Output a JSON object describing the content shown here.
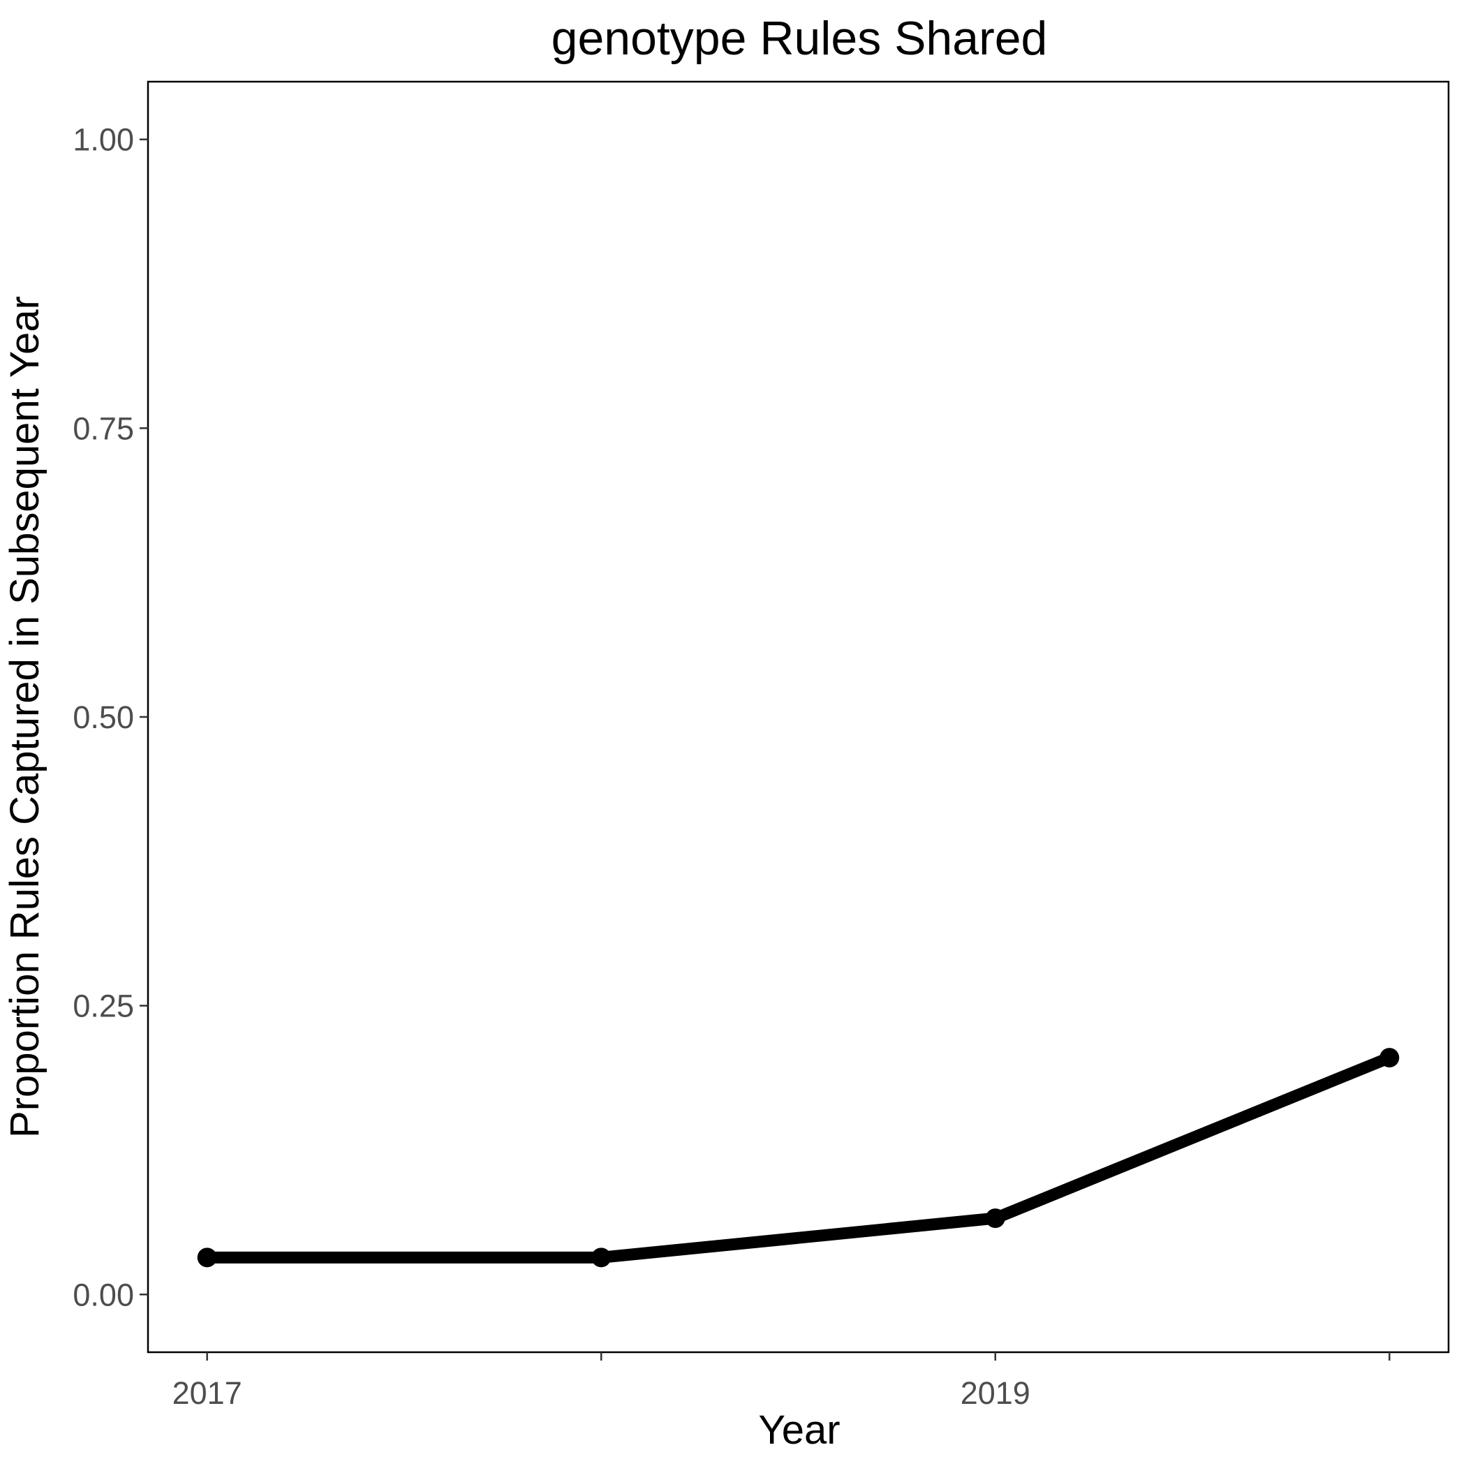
{
  "chart_data": {
    "type": "line",
    "title": "genotype Rules Shared",
    "xlabel": "Year",
    "ylabel": "Proportion Rules Captured in Subsequent Year",
    "x": [
      2017,
      2018,
      2019,
      2020
    ],
    "xticks": [
      2017,
      2019
    ],
    "xlim": [
      2016.85,
      2020.15
    ],
    "ylim": [
      -0.05,
      1.05
    ],
    "yticks": [
      0.0,
      0.25,
      0.5,
      0.75,
      1.0
    ],
    "ytick_labels": [
      "0.00",
      "0.25",
      "0.50",
      "0.75",
      "1.00"
    ],
    "grid": false,
    "series": [
      {
        "values": [
          0.032,
          0.032,
          0.066,
          0.205
        ],
        "color": "#000000"
      }
    ]
  }
}
